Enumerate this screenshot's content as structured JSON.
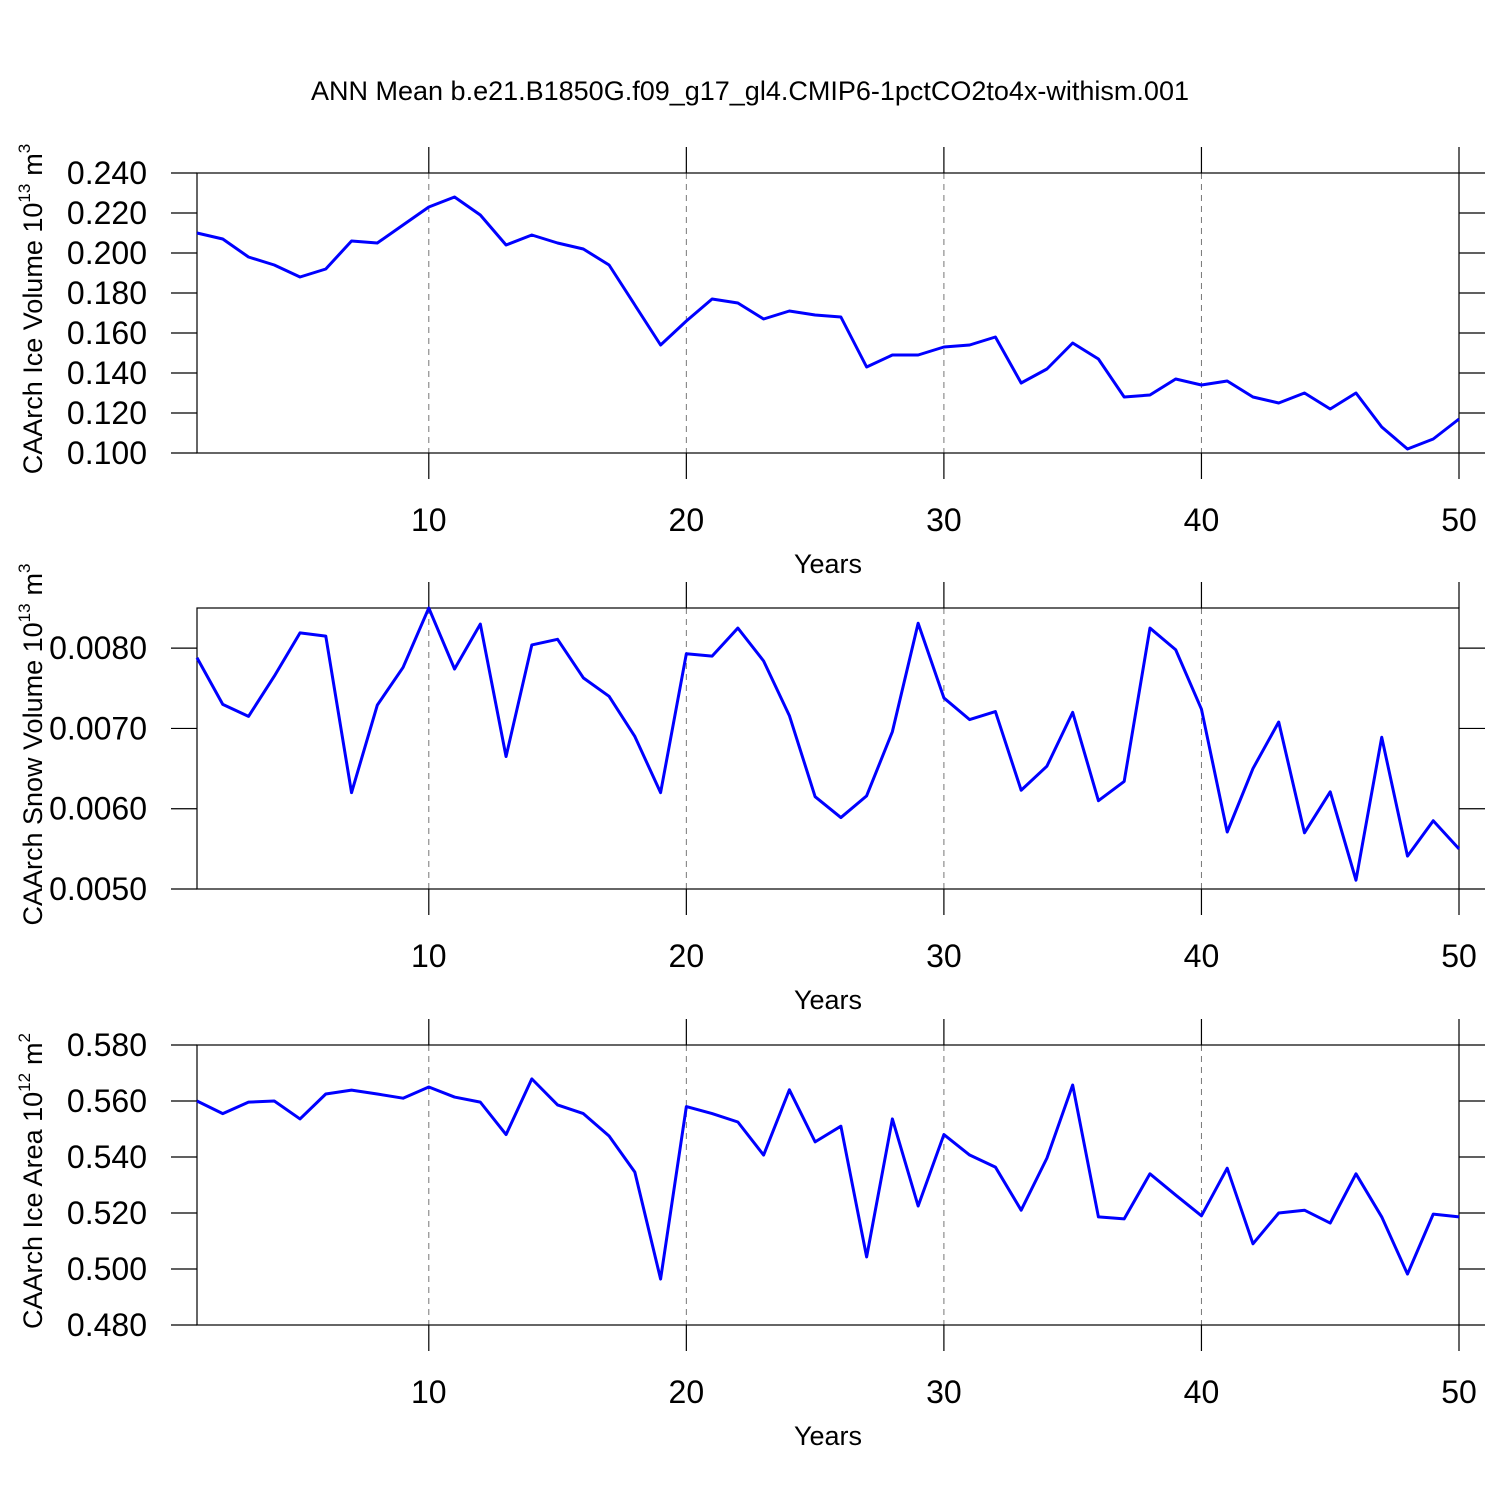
{
  "title": "ANN Mean b.e21.B1850G.f09_g17_gl4.CMIP6-1pctCO2to4x-withism.001",
  "chart_data": [
    {
      "type": "line",
      "xlabel": "Years",
      "ylabel": {
        "text": "CAArch Ice Volume 10",
        "exponent": "13",
        "unit": "m",
        "unit_exponent": "3"
      },
      "x": [
        1,
        2,
        3,
        4,
        5,
        6,
        7,
        8,
        9,
        10,
        11,
        12,
        13,
        14,
        15,
        16,
        17,
        18,
        19,
        20,
        21,
        22,
        23,
        24,
        25,
        26,
        27,
        28,
        29,
        30,
        31,
        32,
        33,
        34,
        35,
        36,
        37,
        38,
        39,
        40,
        41,
        42,
        43,
        44,
        45,
        46,
        47,
        48,
        49,
        50
      ],
      "values": [
        0.21,
        0.207,
        0.198,
        0.194,
        0.188,
        0.192,
        0.206,
        0.205,
        0.214,
        0.223,
        0.228,
        0.219,
        0.204,
        0.209,
        0.205,
        0.202,
        0.194,
        0.174,
        0.154,
        0.166,
        0.177,
        0.175,
        0.167,
        0.171,
        0.169,
        0.168,
        0.143,
        0.149,
        0.149,
        0.153,
        0.154,
        0.158,
        0.135,
        0.142,
        0.155,
        0.147,
        0.128,
        0.129,
        0.137,
        0.134,
        0.136,
        0.128,
        0.125,
        0.13,
        0.122,
        0.13,
        0.113,
        0.102,
        0.107,
        0.117
      ],
      "color": "#0000ff",
      "xlim": [
        1,
        50
      ],
      "xticks": [
        10,
        20,
        30,
        40,
        50
      ],
      "xgrid": true,
      "ylim": [
        0.1,
        0.24
      ],
      "yticks": [
        {
          "value": 0.1,
          "label": "0.100"
        },
        {
          "value": 0.12,
          "label": "0.120"
        },
        {
          "value": 0.14,
          "label": "0.140"
        },
        {
          "value": 0.16,
          "label": "0.160"
        },
        {
          "value": 0.18,
          "label": "0.180"
        },
        {
          "value": 0.2,
          "label": "0.200"
        },
        {
          "value": 0.22,
          "label": "0.220"
        },
        {
          "value": 0.24,
          "label": "0.240"
        }
      ]
    },
    {
      "type": "line",
      "xlabel": "Years",
      "ylabel": {
        "text": "CAArch Snow Volume 10",
        "exponent": "13",
        "unit": "m",
        "unit_exponent": "3"
      },
      "x": [
        1,
        2,
        3,
        4,
        5,
        6,
        7,
        8,
        9,
        10,
        11,
        12,
        13,
        14,
        15,
        16,
        17,
        18,
        19,
        20,
        21,
        22,
        23,
        24,
        25,
        26,
        27,
        28,
        29,
        30,
        31,
        32,
        33,
        34,
        35,
        36,
        37,
        38,
        39,
        40,
        41,
        42,
        43,
        44,
        45,
        46,
        47,
        48,
        49,
        50
      ],
      "values": [
        0.00788,
        0.0073,
        0.00715,
        0.00765,
        0.00819,
        0.00815,
        0.0062,
        0.00729,
        0.00776,
        0.0085,
        0.00774,
        0.0083,
        0.00665,
        0.00804,
        0.00811,
        0.00763,
        0.0074,
        0.0069,
        0.0062,
        0.00793,
        0.0079,
        0.00825,
        0.00784,
        0.00716,
        0.00615,
        0.00589,
        0.00616,
        0.00696,
        0.00831,
        0.00738,
        0.00711,
        0.00721,
        0.00623,
        0.00653,
        0.0072,
        0.0061,
        0.00634,
        0.00825,
        0.00798,
        0.00724,
        0.00571,
        0.0065,
        0.00708,
        0.0057,
        0.00621,
        0.00511,
        0.00689,
        0.00541,
        0.00585,
        0.0055
      ],
      "color": "#0000ff",
      "xlim": [
        1,
        50
      ],
      "xticks": [
        10,
        20,
        30,
        40,
        50
      ],
      "xgrid": true,
      "ylim": [
        0.005,
        0.0085
      ],
      "yticks": [
        {
          "value": 0.005,
          "label": "0.0050"
        },
        {
          "value": 0.006,
          "label": "0.0060"
        },
        {
          "value": 0.007,
          "label": "0.0070"
        },
        {
          "value": 0.008,
          "label": "0.0080"
        }
      ]
    },
    {
      "type": "line",
      "xlabel": "Years",
      "ylabel": {
        "text": "CAArch Ice Area 10",
        "exponent": "12",
        "unit": "m",
        "unit_exponent": "2"
      },
      "x": [
        1,
        2,
        3,
        4,
        5,
        6,
        7,
        8,
        9,
        10,
        11,
        12,
        13,
        14,
        15,
        16,
        17,
        18,
        19,
        20,
        21,
        22,
        23,
        24,
        25,
        26,
        27,
        28,
        29,
        30,
        31,
        32,
        33,
        34,
        35,
        36,
        37,
        38,
        39,
        40,
        41,
        42,
        43,
        44,
        45,
        46,
        47,
        48,
        49,
        50
      ],
      "values": [
        0.56,
        0.5555,
        0.5596,
        0.56,
        0.5536,
        0.5625,
        0.5639,
        0.5625,
        0.561,
        0.565,
        0.5614,
        0.5596,
        0.548,
        0.5679,
        0.5586,
        0.5555,
        0.5475,
        0.5346,
        0.4964,
        0.558,
        0.5555,
        0.5525,
        0.5407,
        0.564,
        0.5454,
        0.551,
        0.5043,
        0.5536,
        0.5225,
        0.548,
        0.5407,
        0.5364,
        0.521,
        0.5396,
        0.5657,
        0.5186,
        0.5179,
        0.534,
        0.5264,
        0.519,
        0.536,
        0.509,
        0.52,
        0.521,
        0.5164,
        0.534,
        0.5186,
        0.4982,
        0.5196,
        0.5186
      ],
      "color": "#0000ff",
      "xlim": [
        1,
        50
      ],
      "xticks": [
        10,
        20,
        30,
        40,
        50
      ],
      "xgrid": true,
      "ylim": [
        0.48,
        0.58
      ],
      "yticks": [
        {
          "value": 0.48,
          "label": "0.480"
        },
        {
          "value": 0.5,
          "label": "0.500"
        },
        {
          "value": 0.52,
          "label": "0.520"
        },
        {
          "value": 0.54,
          "label": "0.540"
        },
        {
          "value": 0.56,
          "label": "0.560"
        },
        {
          "value": 0.58,
          "label": "0.580"
        }
      ]
    }
  ]
}
